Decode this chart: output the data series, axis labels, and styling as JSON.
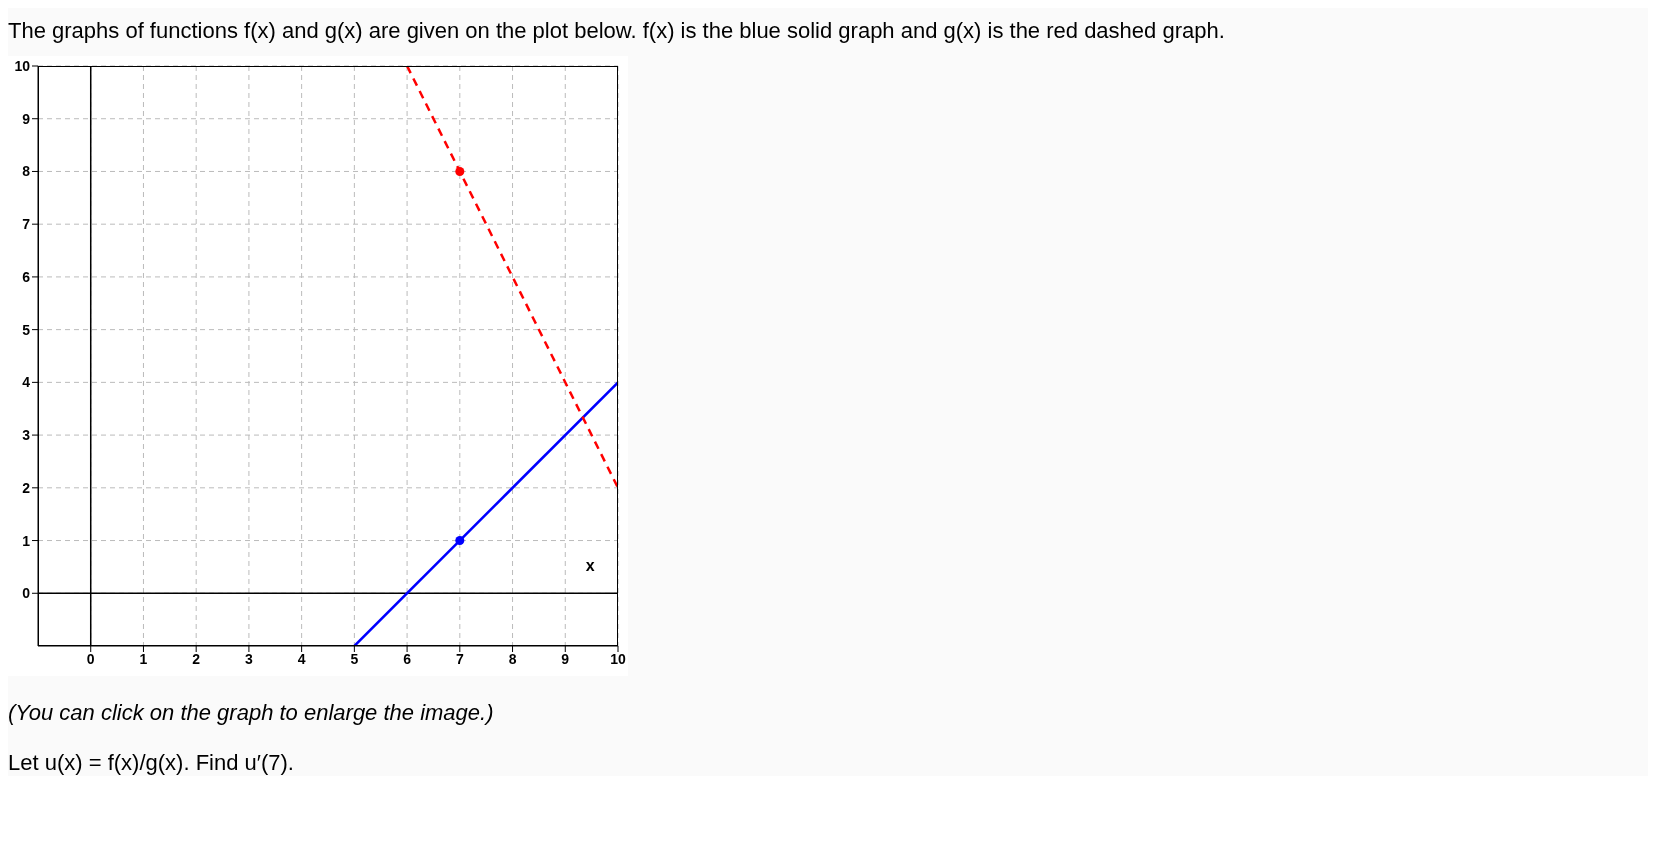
{
  "chart_data": {
    "type": "line",
    "title": "The graphs of functions f(x) and g(x) are given on the plot below. f(x) is the blue solid graph and g(x) is the red dashed graph.",
    "xlabel": "x",
    "annotations": [
      "(You can click on the graph to enlarge the image.)",
      "Let u(x) = f(x)/g(x). Find u′(7)."
    ],
    "series": [
      {
        "x": [
          5,
          10
        ],
        "values": [
          -1,
          4
        ],
        "color": "#0000ff",
        "line_style": "solid",
        "marker": "none"
      },
      {
        "x": [
          6,
          10
        ],
        "values": [
          10,
          2
        ],
        "color": "#ff0000",
        "line_style": "dashed",
        "marker": "none"
      },
      {
        "type": "scatter",
        "x": [
          7
        ],
        "values": [
          1
        ],
        "color": "#0000ff",
        "marker": "circle"
      },
      {
        "type": "scatter",
        "x": [
          7
        ],
        "values": [
          8
        ],
        "color": "#ff0000",
        "marker": "circle"
      }
    ],
    "xlim": [
      -1,
      10
    ],
    "ylim": [
      -1,
      10
    ],
    "xticks": [
      0,
      1,
      2,
      3,
      4,
      5,
      6,
      7,
      8,
      9,
      10
    ],
    "yticks": [
      0,
      1,
      2,
      3,
      4,
      5,
      6,
      7,
      8,
      9,
      10
    ],
    "grid": true
  }
}
